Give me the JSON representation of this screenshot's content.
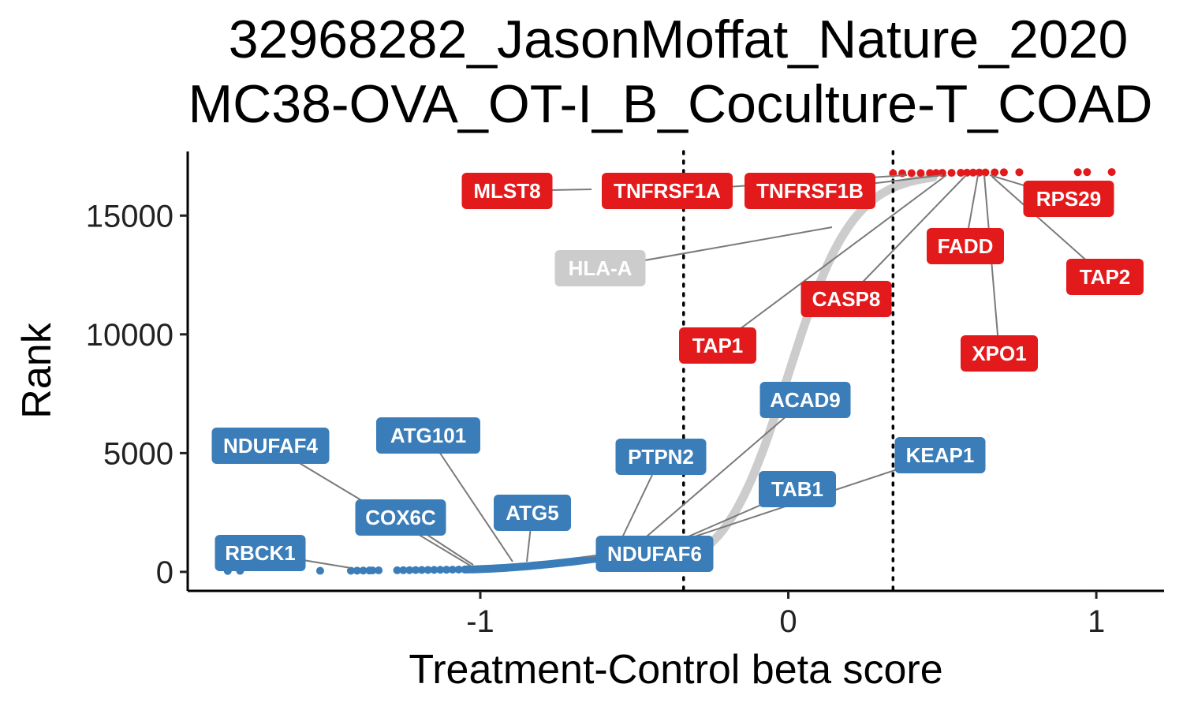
{
  "chart_data": {
    "type": "scatter",
    "title_lines": [
      "32968282_JasonMoffat_Nature_2020",
      "MC38-OVA_OT-I_B_Coculture-T_COAD"
    ],
    "xlabel": "Treatment-Control beta score",
    "ylabel": "Rank",
    "xlim": [
      -1.95,
      1.22
    ],
    "ylim": [
      -800,
      17700
    ],
    "x_ticks": [
      {
        "value": -1,
        "label": "-1"
      },
      {
        "value": 0,
        "label": "0"
      },
      {
        "value": 1,
        "label": "1"
      }
    ],
    "y_ticks": [
      {
        "value": 0,
        "label": "0"
      },
      {
        "value": 5000,
        "label": "5000"
      },
      {
        "value": 10000,
        "label": "10000"
      },
      {
        "value": 15000,
        "label": "15000"
      }
    ],
    "thresholds_x": [
      -0.34,
      0.34
    ],
    "grid": false,
    "colors": {
      "negative": "#3a7db8",
      "positive": "#e31a1c",
      "neutral": "#cccccc"
    },
    "labeled_genes": [
      {
        "gene": "MLST8",
        "x": 0.47,
        "y": 16790,
        "group": "positive"
      },
      {
        "gene": "TNFRSF1A",
        "x": 0.49,
        "y": 16800,
        "group": "positive"
      },
      {
        "gene": "TNFRSF1B",
        "x": 0.51,
        "y": 16810,
        "group": "positive"
      },
      {
        "gene": "RPS29",
        "x": 0.65,
        "y": 16840,
        "group": "positive"
      },
      {
        "gene": "FADD",
        "x": 0.61,
        "y": 16830,
        "group": "positive"
      },
      {
        "gene": "TAP2",
        "x": 0.66,
        "y": 16850,
        "group": "positive"
      },
      {
        "gene": "CASP8",
        "x": 0.55,
        "y": 16820,
        "group": "positive"
      },
      {
        "gene": "TAP1",
        "x": 0.52,
        "y": 16815,
        "group": "positive"
      },
      {
        "gene": "XPO1",
        "x": 0.64,
        "y": 16835,
        "group": "positive"
      },
      {
        "gene": "HLA-A",
        "x": 0.13,
        "y": 14600,
        "group": "neutral"
      },
      {
        "gene": "ACAD9",
        "x": -0.45,
        "y": 950,
        "group": "negative"
      },
      {
        "gene": "PTPN2",
        "x": -0.57,
        "y": 600,
        "group": "negative"
      },
      {
        "gene": "KEAP1",
        "x": -0.35,
        "y": 1500,
        "group": "negative"
      },
      {
        "gene": "TAB1",
        "x": -0.41,
        "y": 1200,
        "group": "negative"
      },
      {
        "gene": "NDUFAF6",
        "x": -0.58,
        "y": 570,
        "group": "negative"
      },
      {
        "gene": "ATG5",
        "x": -0.85,
        "y": 330,
        "group": "negative"
      },
      {
        "gene": "ATG101",
        "x": -0.9,
        "y": 280,
        "group": "negative"
      },
      {
        "gene": "COX6C",
        "x": -1.02,
        "y": 120,
        "group": "negative"
      },
      {
        "gene": "NDUFAF4",
        "x": -1.04,
        "y": 100,
        "group": "negative"
      },
      {
        "gene": "RBCK1",
        "x": -1.48,
        "y": 20,
        "group": "negative"
      }
    ]
  }
}
